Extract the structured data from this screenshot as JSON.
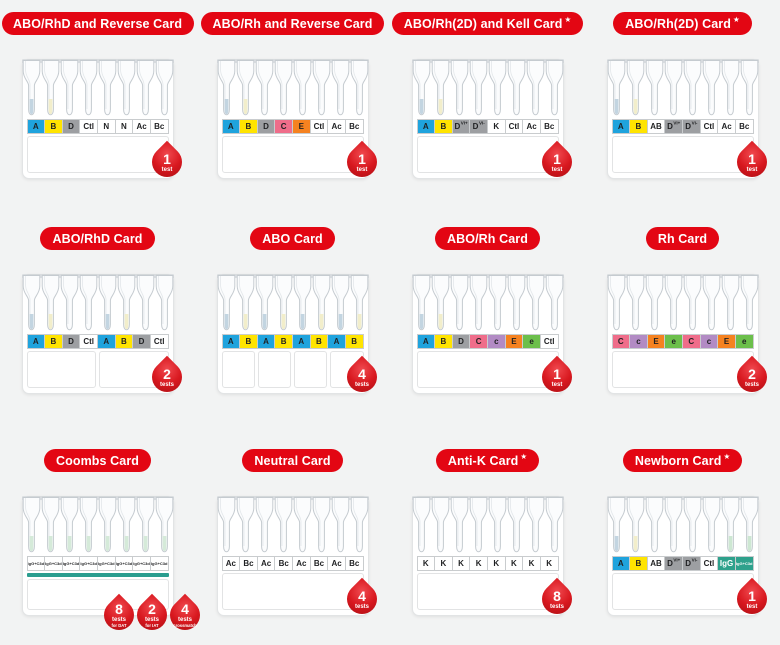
{
  "page": {
    "background": "#f2f3f3",
    "accent_red": "#e30613",
    "badge_red": "#d8181f",
    "stripe_teal": "#2a9d8f"
  },
  "cards": [
    {
      "title": "ABO/RhD and Reverse Card",
      "star": null,
      "wells": [
        {
          "label": "A",
          "bg": "#1fa3dd",
          "fg": "#1f2022"
        },
        {
          "label": "B",
          "bg": "#ffe400",
          "fg": "#1f2022"
        },
        {
          "label": "D",
          "bg": "#9d9fa2",
          "fg": "#1f2022"
        },
        {
          "label": "Ctl",
          "bg": "#ffffff",
          "fg": "#1f2022"
        },
        {
          "label": "N",
          "bg": "#ffffff",
          "fg": "#1f2022"
        },
        {
          "label": "N",
          "bg": "#ffffff",
          "fg": "#1f2022"
        },
        {
          "label": "Ac",
          "bg": "#ffffff",
          "fg": "#1f2022"
        },
        {
          "label": "Bc",
          "bg": "#ffffff",
          "fg": "#1f2022"
        }
      ],
      "tube_fills": [
        "#c3d5e1",
        "#f2eecb",
        null,
        null,
        null,
        null,
        null,
        null
      ],
      "sections": 1,
      "stripe": null,
      "badges": [
        {
          "count": "1",
          "unit": "test",
          "sub": null
        }
      ]
    },
    {
      "title": "ABO/Rh and Reverse Card",
      "star": null,
      "wells": [
        {
          "label": "A",
          "bg": "#1fa3dd",
          "fg": "#1f2022"
        },
        {
          "label": "B",
          "bg": "#ffe400",
          "fg": "#1f2022"
        },
        {
          "label": "D",
          "bg": "#9d9fa2",
          "fg": "#1f2022"
        },
        {
          "label": "C",
          "bg": "#ef6d8a",
          "fg": "#1f2022"
        },
        {
          "label": "E",
          "bg": "#f58220",
          "fg": "#1f2022"
        },
        {
          "label": "Ctl",
          "bg": "#ffffff",
          "fg": "#1f2022"
        },
        {
          "label": "Ac",
          "bg": "#ffffff",
          "fg": "#1f2022"
        },
        {
          "label": "Bc",
          "bg": "#ffffff",
          "fg": "#1f2022"
        }
      ],
      "tube_fills": [
        "#c3d5e1",
        "#f2eecb",
        null,
        null,
        null,
        null,
        null,
        null
      ],
      "sections": 1,
      "stripe": null,
      "badges": [
        {
          "count": "1",
          "unit": "test",
          "sub": null
        }
      ]
    },
    {
      "title": "ABO/Rh(2D) and Kell Card",
      "star": "★",
      "wells": [
        {
          "label": "A",
          "bg": "#1fa3dd",
          "fg": "#1f2022"
        },
        {
          "label": "B",
          "bg": "#ffe400",
          "fg": "#1f2022"
        },
        {
          "label": "D",
          "sup": "VI+",
          "bg": "#9d9fa2",
          "fg": "#1f2022"
        },
        {
          "label": "D",
          "sup": "VI-",
          "bg": "#9d9fa2",
          "fg": "#1f2022"
        },
        {
          "label": "K",
          "bg": "#ffffff",
          "fg": "#1f2022"
        },
        {
          "label": "Ctl",
          "bg": "#ffffff",
          "fg": "#1f2022"
        },
        {
          "label": "Ac",
          "bg": "#ffffff",
          "fg": "#1f2022"
        },
        {
          "label": "Bc",
          "bg": "#ffffff",
          "fg": "#1f2022"
        }
      ],
      "tube_fills": [
        "#c3d5e1",
        "#f2eecb",
        null,
        null,
        null,
        null,
        null,
        null
      ],
      "sections": 1,
      "stripe": null,
      "badges": [
        {
          "count": "1",
          "unit": "test",
          "sub": null
        }
      ]
    },
    {
      "title": "ABO/Rh(2D) Card",
      "star": "★",
      "wells": [
        {
          "label": "A",
          "bg": "#1fa3dd",
          "fg": "#1f2022"
        },
        {
          "label": "B",
          "bg": "#ffe400",
          "fg": "#1f2022"
        },
        {
          "label": "AB",
          "bg": "#ffffff",
          "fg": "#1f2022"
        },
        {
          "label": "D",
          "sup": "VI+",
          "bg": "#9d9fa2",
          "fg": "#1f2022"
        },
        {
          "label": "D",
          "sup": "VI-",
          "bg": "#9d9fa2",
          "fg": "#1f2022"
        },
        {
          "label": "Ctl",
          "bg": "#ffffff",
          "fg": "#1f2022"
        },
        {
          "label": "Ac",
          "bg": "#ffffff",
          "fg": "#1f2022"
        },
        {
          "label": "Bc",
          "bg": "#ffffff",
          "fg": "#1f2022"
        }
      ],
      "tube_fills": [
        "#c3d5e1",
        "#f2eecb",
        null,
        null,
        null,
        null,
        null,
        null
      ],
      "sections": 1,
      "stripe": null,
      "badges": [
        {
          "count": "1",
          "unit": "test",
          "sub": null
        }
      ]
    },
    {
      "title": "ABO/RhD Card",
      "star": null,
      "wells": [
        {
          "label": "A",
          "bg": "#1fa3dd",
          "fg": "#1f2022"
        },
        {
          "label": "B",
          "bg": "#ffe400",
          "fg": "#1f2022"
        },
        {
          "label": "D",
          "bg": "#9d9fa2",
          "fg": "#1f2022"
        },
        {
          "label": "Ctl",
          "bg": "#ffffff",
          "fg": "#1f2022"
        },
        {
          "label": "A",
          "bg": "#1fa3dd",
          "fg": "#1f2022"
        },
        {
          "label": "B",
          "bg": "#ffe400",
          "fg": "#1f2022"
        },
        {
          "label": "D",
          "bg": "#9d9fa2",
          "fg": "#1f2022"
        },
        {
          "label": "Ctl",
          "bg": "#ffffff",
          "fg": "#1f2022"
        }
      ],
      "tube_fills": [
        "#c3d5e1",
        "#f2eecb",
        null,
        null,
        "#c3d5e1",
        "#f2eecb",
        null,
        null
      ],
      "sections": 2,
      "stripe": null,
      "badges": [
        {
          "count": "2",
          "unit": "tests",
          "sub": null
        }
      ]
    },
    {
      "title": "ABO Card",
      "star": null,
      "wells": [
        {
          "label": "A",
          "bg": "#1fa3dd",
          "fg": "#1f2022"
        },
        {
          "label": "B",
          "bg": "#ffe400",
          "fg": "#1f2022"
        },
        {
          "label": "A",
          "bg": "#1fa3dd",
          "fg": "#1f2022"
        },
        {
          "label": "B",
          "bg": "#ffe400",
          "fg": "#1f2022"
        },
        {
          "label": "A",
          "bg": "#1fa3dd",
          "fg": "#1f2022"
        },
        {
          "label": "B",
          "bg": "#ffe400",
          "fg": "#1f2022"
        },
        {
          "label": "A",
          "bg": "#1fa3dd",
          "fg": "#1f2022"
        },
        {
          "label": "B",
          "bg": "#ffe400",
          "fg": "#1f2022"
        }
      ],
      "tube_fills": [
        "#c3d5e1",
        "#f2eecb",
        "#c3d5e1",
        "#f2eecb",
        "#c3d5e1",
        "#f2eecb",
        "#c3d5e1",
        "#f2eecb"
      ],
      "sections": 4,
      "stripe": null,
      "badges": [
        {
          "count": "4",
          "unit": "tests",
          "sub": null
        }
      ]
    },
    {
      "title": "ABO/Rh Card",
      "star": null,
      "wells": [
        {
          "label": "A",
          "bg": "#1fa3dd",
          "fg": "#1f2022"
        },
        {
          "label": "B",
          "bg": "#ffe400",
          "fg": "#1f2022"
        },
        {
          "label": "D",
          "bg": "#9d9fa2",
          "fg": "#1f2022"
        },
        {
          "label": "C",
          "bg": "#ef6d8a",
          "fg": "#1f2022"
        },
        {
          "label": "c",
          "bg": "#b28bc4",
          "fg": "#1f2022"
        },
        {
          "label": "E",
          "bg": "#f58220",
          "fg": "#1f2022"
        },
        {
          "label": "e",
          "bg": "#6cbf4b",
          "fg": "#1f2022"
        },
        {
          "label": "Ctl",
          "bg": "#ffffff",
          "fg": "#1f2022"
        }
      ],
      "tube_fills": [
        "#c3d5e1",
        "#f2eecb",
        null,
        null,
        null,
        null,
        null,
        null
      ],
      "sections": 1,
      "stripe": null,
      "badges": [
        {
          "count": "1",
          "unit": "test",
          "sub": null
        }
      ]
    },
    {
      "title": "Rh Card",
      "star": null,
      "wells": [
        {
          "label": "C",
          "bg": "#ef6d8a",
          "fg": "#1f2022"
        },
        {
          "label": "c",
          "bg": "#b28bc4",
          "fg": "#1f2022"
        },
        {
          "label": "E",
          "bg": "#f58220",
          "fg": "#1f2022"
        },
        {
          "label": "e",
          "bg": "#6cbf4b",
          "fg": "#1f2022"
        },
        {
          "label": "C",
          "bg": "#ef6d8a",
          "fg": "#1f2022"
        },
        {
          "label": "c",
          "bg": "#b28bc4",
          "fg": "#1f2022"
        },
        {
          "label": "E",
          "bg": "#f58220",
          "fg": "#1f2022"
        },
        {
          "label": "e",
          "bg": "#6cbf4b",
          "fg": "#1f2022"
        }
      ],
      "tube_fills": [
        null,
        null,
        null,
        null,
        null,
        null,
        null,
        null
      ],
      "sections": 1,
      "stripe": null,
      "badges": [
        {
          "count": "2",
          "unit": "tests",
          "sub": null
        }
      ]
    },
    {
      "title": "Coombs Card",
      "star": null,
      "wells": [
        {
          "label": "IgG+C3d",
          "bg": "#ffffff",
          "fg": "#1f2022"
        },
        {
          "label": "IgG+C3d",
          "bg": "#ffffff",
          "fg": "#1f2022"
        },
        {
          "label": "IgG+C3d",
          "bg": "#ffffff",
          "fg": "#1f2022"
        },
        {
          "label": "IgG+C3d",
          "bg": "#ffffff",
          "fg": "#1f2022"
        },
        {
          "label": "IgG+C3d",
          "bg": "#ffffff",
          "fg": "#1f2022"
        },
        {
          "label": "IgG+C3d",
          "bg": "#ffffff",
          "fg": "#1f2022"
        },
        {
          "label": "IgG+C3d",
          "bg": "#ffffff",
          "fg": "#1f2022"
        },
        {
          "label": "IgG+C3d",
          "bg": "#ffffff",
          "fg": "#1f2022"
        }
      ],
      "tube_fills": [
        "#d5ead9",
        "#d5ead9",
        "#d5ead9",
        "#d5ead9",
        "#d5ead9",
        "#d5ead9",
        "#d5ead9",
        "#d5ead9"
      ],
      "sections": 1,
      "stripe": "#2a9d8f",
      "badges": [
        {
          "count": "8",
          "unit": "tests",
          "sub": "for DAT"
        },
        {
          "count": "2",
          "unit": "tests",
          "sub": "for IAT"
        },
        {
          "count": "4",
          "unit": "tests",
          "sub": "crossmatch"
        }
      ]
    },
    {
      "title": "Neutral Card",
      "star": null,
      "wells": [
        {
          "label": "Ac",
          "bg": "#ffffff",
          "fg": "#1f2022"
        },
        {
          "label": "Bc",
          "bg": "#ffffff",
          "fg": "#1f2022"
        },
        {
          "label": "Ac",
          "bg": "#ffffff",
          "fg": "#1f2022"
        },
        {
          "label": "Bc",
          "bg": "#ffffff",
          "fg": "#1f2022"
        },
        {
          "label": "Ac",
          "bg": "#ffffff",
          "fg": "#1f2022"
        },
        {
          "label": "Bc",
          "bg": "#ffffff",
          "fg": "#1f2022"
        },
        {
          "label": "Ac",
          "bg": "#ffffff",
          "fg": "#1f2022"
        },
        {
          "label": "Bc",
          "bg": "#ffffff",
          "fg": "#1f2022"
        }
      ],
      "tube_fills": [
        null,
        null,
        null,
        null,
        null,
        null,
        null,
        null
      ],
      "sections": 1,
      "stripe": null,
      "badges": [
        {
          "count": "4",
          "unit": "tests",
          "sub": null
        }
      ]
    },
    {
      "title": "Anti-K Card",
      "star": "★",
      "wells": [
        {
          "label": "K",
          "bg": "#ffffff",
          "fg": "#1f2022"
        },
        {
          "label": "K",
          "bg": "#ffffff",
          "fg": "#1f2022"
        },
        {
          "label": "K",
          "bg": "#ffffff",
          "fg": "#1f2022"
        },
        {
          "label": "K",
          "bg": "#ffffff",
          "fg": "#1f2022"
        },
        {
          "label": "K",
          "bg": "#ffffff",
          "fg": "#1f2022"
        },
        {
          "label": "K",
          "bg": "#ffffff",
          "fg": "#1f2022"
        },
        {
          "label": "K",
          "bg": "#ffffff",
          "fg": "#1f2022"
        },
        {
          "label": "K",
          "bg": "#ffffff",
          "fg": "#1f2022"
        }
      ],
      "tube_fills": [
        null,
        null,
        null,
        null,
        null,
        null,
        null,
        null
      ],
      "sections": 1,
      "stripe": null,
      "badges": [
        {
          "count": "8",
          "unit": "tests",
          "sub": null
        }
      ]
    },
    {
      "title": "Newborn Card",
      "star": "★",
      "wells": [
        {
          "label": "A",
          "bg": "#1fa3dd",
          "fg": "#1f2022"
        },
        {
          "label": "B",
          "bg": "#ffe400",
          "fg": "#1f2022"
        },
        {
          "label": "AB",
          "bg": "#ffffff",
          "fg": "#1f2022"
        },
        {
          "label": "D",
          "sup": "VI+",
          "bg": "#9d9fa2",
          "fg": "#1f2022"
        },
        {
          "label": "D",
          "sup": "VI-",
          "bg": "#9d9fa2",
          "fg": "#1f2022"
        },
        {
          "label": "Ctl",
          "bg": "#ffffff",
          "fg": "#1f2022"
        },
        {
          "label": "IgG",
          "bg": "#2ea18c",
          "fg": "#ffffff"
        },
        {
          "label": "IgG+C3d",
          "bg": "#2ea18c",
          "fg": "#ffffff"
        }
      ],
      "tube_fills": [
        "#c3d5e1",
        "#f2eecb",
        null,
        null,
        null,
        null,
        "#cde7d2",
        "#cde7d2"
      ],
      "sections": 1,
      "stripe": null,
      "badges": [
        {
          "count": "1",
          "unit": "test",
          "sub": null
        }
      ]
    }
  ]
}
